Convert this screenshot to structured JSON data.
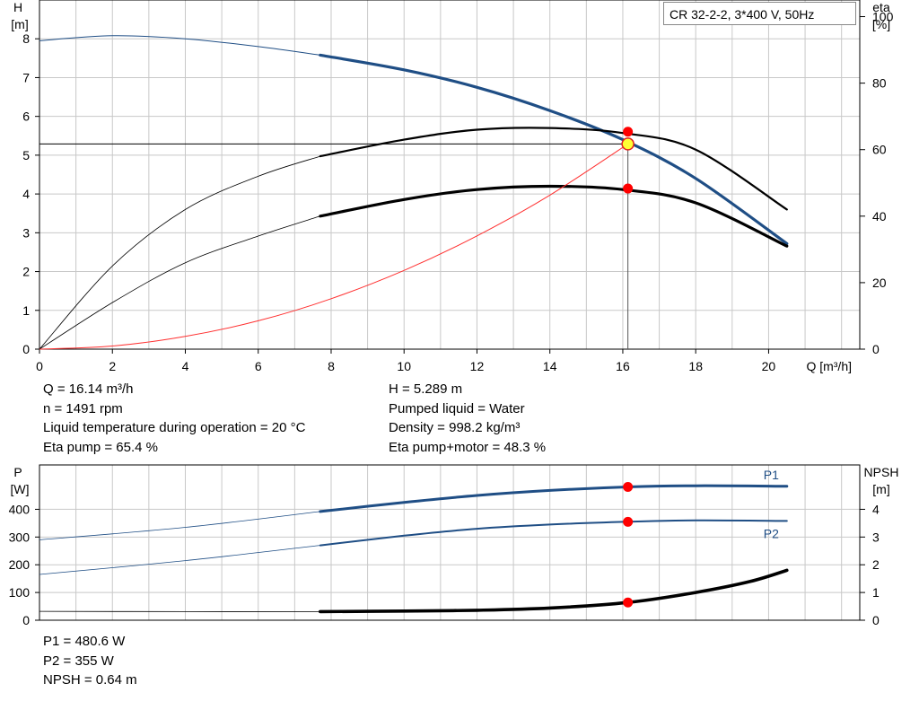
{
  "model_label": "CR 32-2-2, 3*400 V, 50Hz",
  "top_info": {
    "left": [
      "Q = 16.14 m³/h",
      "n = 1491 rpm",
      "Liquid temperature during operation = 20 °C",
      "Eta pump = 65.4 %"
    ],
    "right": [
      "H = 5.289 m",
      "Pumped liquid = Water",
      "Density = 998.2 kg/m³",
      "Eta pump+motor = 48.3 %"
    ]
  },
  "bottom_info": [
    "P1 = 480.6 W",
    "P2 = 355 W",
    "NPSH = 0.64 m"
  ],
  "colors": {
    "pump_blue": "#1f4e85",
    "system_red": "#ff3030",
    "marker_red": "#ff0000",
    "marker_yellow": "#ffff33",
    "grid": "#c8c8c8"
  },
  "chart_data": [
    {
      "type": "line",
      "title": "",
      "xlabel": "Q [m³/h]",
      "xlim": [
        0,
        22.5
      ],
      "xticks": [
        0,
        2,
        4,
        6,
        8,
        10,
        12,
        14,
        16,
        18,
        20
      ],
      "y_axes": [
        {
          "side": "left",
          "label": [
            "H",
            "[m]"
          ],
          "ylim": [
            0,
            9.0
          ],
          "ticks": [
            0,
            1,
            2,
            3,
            4,
            5,
            6,
            7,
            8
          ]
        },
        {
          "side": "right",
          "label": [
            "eta",
            "[%]"
          ],
          "ylim": [
            0,
            105
          ],
          "ticks": [
            0,
            20,
            40,
            60,
            80,
            100
          ]
        }
      ],
      "grid": true,
      "series": [
        {
          "key": "head",
          "axis": "left",
          "thick_from": 7.7,
          "x": [
            0,
            2,
            4,
            6,
            7.7,
            10,
            12,
            14,
            16,
            18,
            20.5
          ],
          "y": [
            7.95,
            8.08,
            8.0,
            7.8,
            7.58,
            7.2,
            6.75,
            6.15,
            5.4,
            4.4,
            2.72
          ]
        },
        {
          "key": "eta_pump_motor",
          "axis": "right",
          "thick_from": 7.7,
          "x": [
            0,
            2,
            4,
            6,
            7.7,
            10,
            12,
            14,
            16,
            18,
            20.5
          ],
          "y": [
            0,
            14,
            26,
            34,
            40,
            45,
            48,
            49,
            48,
            44,
            31
          ]
        },
        {
          "key": "eta_pump",
          "axis": "right",
          "thick_from": 7.7,
          "x": [
            0,
            2,
            4,
            6,
            7.7,
            10,
            12,
            14,
            16,
            18,
            20.5
          ],
          "y": [
            0,
            25,
            42,
            52,
            58,
            63,
            66,
            66.5,
            65,
            60,
            42
          ]
        },
        {
          "key": "system_curve",
          "axis": "left",
          "thick_from": null,
          "x": [
            0,
            2,
            4,
            6,
            8,
            10,
            12,
            14,
            16.14
          ],
          "y": [
            0,
            0.08,
            0.33,
            0.73,
            1.3,
            2.03,
            2.92,
            3.97,
            5.289
          ]
        }
      ],
      "operating_point": {
        "x": 16.14,
        "h": 5.289,
        "eta_pump": 65.4,
        "eta_pump_motor": 48.3
      }
    },
    {
      "type": "line",
      "title": "",
      "xlim": [
        0,
        22.5
      ],
      "y_axes": [
        {
          "side": "left",
          "label": [
            "P",
            "[W]"
          ],
          "ylim": [
            0,
            560
          ],
          "ticks": [
            0,
            100,
            200,
            300,
            400
          ]
        },
        {
          "side": "right",
          "label": [
            "NPSH",
            "[m]"
          ],
          "ylim": [
            0,
            5.6
          ],
          "ticks": [
            0,
            1,
            2,
            3,
            4
          ]
        }
      ],
      "grid": true,
      "series": [
        {
          "key": "p1",
          "name": "P1",
          "axis": "left",
          "thick_from": 7.7,
          "x": [
            0,
            4,
            7.7,
            10,
            12,
            14,
            16.14,
            18,
            20.5
          ],
          "y": [
            290,
            335,
            392,
            425,
            450,
            468,
            480.6,
            485,
            483
          ]
        },
        {
          "key": "p2",
          "name": "P2",
          "axis": "left",
          "thick_from": 7.7,
          "x": [
            0,
            4,
            7.7,
            10,
            12,
            14,
            16.14,
            18,
            20.5
          ],
          "y": [
            165,
            215,
            270,
            305,
            330,
            345,
            355,
            360,
            358
          ]
        },
        {
          "key": "npsh",
          "axis": "right",
          "thick_from": 7.7,
          "x": [
            0,
            4,
            7.7,
            10,
            12,
            14,
            16.14,
            18,
            19.5,
            20.5
          ],
          "y": [
            0.32,
            0.31,
            0.31,
            0.33,
            0.36,
            0.44,
            0.64,
            1.0,
            1.4,
            1.8
          ]
        }
      ],
      "operating_point": {
        "x": 16.14,
        "p1": 480.6,
        "p2": 355,
        "npsh": 0.64
      }
    }
  ]
}
